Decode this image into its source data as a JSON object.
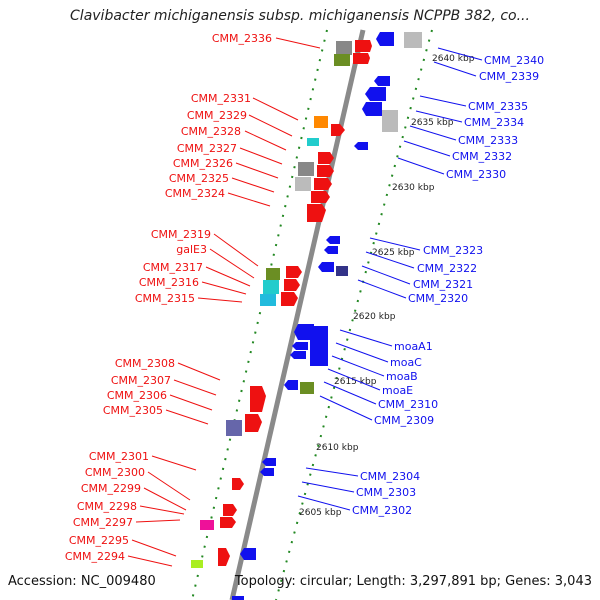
{
  "title": "Clavibacter michiganensis subsp. michiganensis NCPPB 382, co...",
  "footer": {
    "accession": "Accession: NC_009480",
    "summary": "Topology: circular; Length: 3,297,891 bp; Genes: 3,043"
  },
  "colors": {
    "backbone": "#8a8a8a",
    "forward": "#ee1111",
    "reverse": "#1111ee",
    "gray_gene": "#999999",
    "orange_gene": "#ff8800",
    "cyan_gene": "#22cccc",
    "olive_gene": "#6b8e23",
    "magenta_gene": "#ee1199",
    "lime_gene": "#aaee22",
    "tick": "#228822"
  },
  "kbp_ticks": [
    "2640 kbp",
    "2635 kbp",
    "2630 kbp",
    "2625 kbp",
    "2620 kbp",
    "2615 kbp",
    "2610 kbp",
    "2605 kbp"
  ],
  "left_labels": [
    "CMM_2336",
    "CMM_2331",
    "CMM_2329",
    "CMM_2328",
    "CMM_2327",
    "CMM_2326",
    "CMM_2325",
    "CMM_2324",
    "CMM_2319",
    "galE3",
    "CMM_2317",
    "CMM_2316",
    "CMM_2315",
    "CMM_2308",
    "CMM_2307",
    "CMM_2306",
    "CMM_2305",
    "CMM_2301",
    "CMM_2300",
    "CMM_2299",
    "CMM_2298",
    "CMM_2297",
    "CMM_2295",
    "CMM_2294"
  ],
  "right_labels": [
    "CMM_2340",
    "CMM_2339",
    "CMM_2335",
    "CMM_2334",
    "CMM_2333",
    "CMM_2332",
    "CMM_2330",
    "CMM_2323",
    "CMM_2322",
    "CMM_2321",
    "CMM_2320",
    "moaA1",
    "moaC",
    "moaB",
    "moaE",
    "CMM_2310",
    "CMM_2309",
    "CMM_2304",
    "CMM_2303",
    "CMM_2302"
  ]
}
